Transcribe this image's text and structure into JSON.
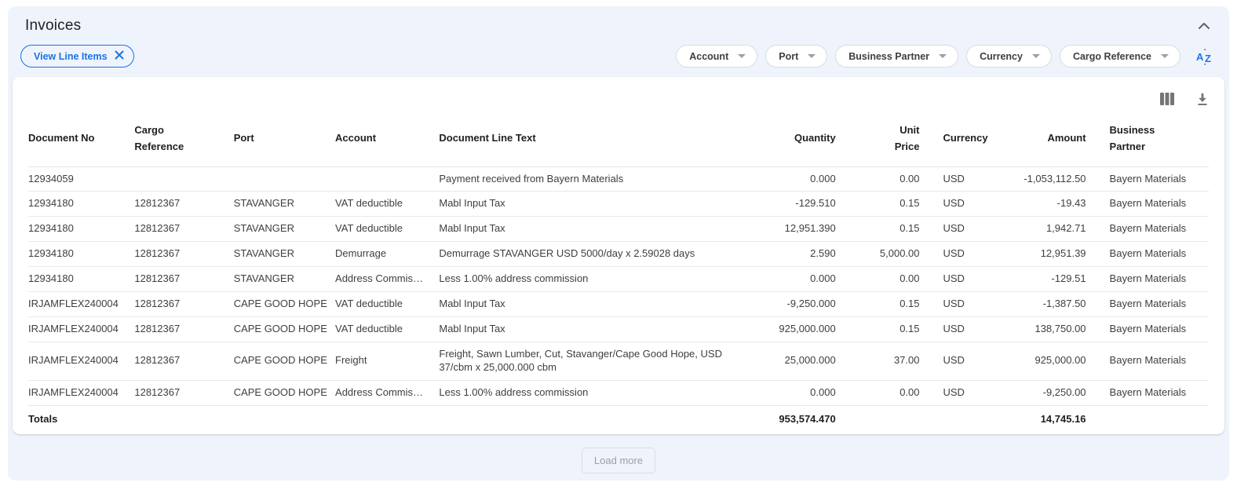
{
  "header": {
    "title": "Invoices"
  },
  "toolbar": {
    "active_filter_chip": {
      "label": "View Line Items"
    },
    "filter_dropdowns": [
      {
        "label": "Account"
      },
      {
        "label": "Port"
      },
      {
        "label": "Business Partner"
      },
      {
        "label": "Currency"
      },
      {
        "label": "Cargo Reference"
      }
    ]
  },
  "table": {
    "columns": [
      {
        "label": "Document No",
        "align": "left"
      },
      {
        "label": "Cargo Reference",
        "align": "left"
      },
      {
        "label": "Port",
        "align": "left"
      },
      {
        "label": "Account",
        "align": "left"
      },
      {
        "label": "Document Line Text",
        "align": "left"
      },
      {
        "label": "Quantity",
        "align": "right"
      },
      {
        "label": "Unit Price",
        "align": "right"
      },
      {
        "label": "Currency",
        "align": "left"
      },
      {
        "label": "Amount",
        "align": "right"
      },
      {
        "label": "Business Partner",
        "align": "left"
      }
    ],
    "rows": [
      [
        "12934059",
        "",
        "",
        "",
        "Payment received from Bayern Materials",
        "0.000",
        "0.00",
        "USD",
        "-1,053,112.50",
        "Bayern Materials"
      ],
      [
        "12934180",
        "12812367",
        "STAVANGER",
        "VAT deductible",
        "Mabl Input Tax",
        "-129.510",
        "0.15",
        "USD",
        "-19.43",
        "Bayern Materials"
      ],
      [
        "12934180",
        "12812367",
        "STAVANGER",
        "VAT deductible",
        "Mabl Input Tax",
        "12,951.390",
        "0.15",
        "USD",
        "1,942.71",
        "Bayern Materials"
      ],
      [
        "12934180",
        "12812367",
        "STAVANGER",
        "Demurrage",
        "Demurrage STAVANGER USD 5000/day x 2.59028 days",
        "2.590",
        "5,000.00",
        "USD",
        "12,951.39",
        "Bayern Materials"
      ],
      [
        "12934180",
        "12812367",
        "STAVANGER",
        "Address Commis…",
        "Less 1.00% address commission",
        "0.000",
        "0.00",
        "USD",
        "-129.51",
        "Bayern Materials"
      ],
      [
        "IRJAMFLEX240004",
        "12812367",
        "CAPE GOOD HOPE",
        "VAT deductible",
        "Mabl Input Tax",
        "-9,250.000",
        "0.15",
        "USD",
        "-1,387.50",
        "Bayern Materials"
      ],
      [
        "IRJAMFLEX240004",
        "12812367",
        "CAPE GOOD HOPE",
        "VAT deductible",
        "Mabl Input Tax",
        "925,000.000",
        "0.15",
        "USD",
        "138,750.00",
        "Bayern Materials"
      ],
      [
        "IRJAMFLEX240004",
        "12812367",
        "CAPE GOOD HOPE",
        "Freight",
        "Freight, Sawn Lumber, Cut, Stavanger/Cape Good Hope, USD 37/cbm x 25,000.000 cbm",
        "25,000.000",
        "37.00",
        "USD",
        "925,000.00",
        "Bayern Materials"
      ],
      [
        "IRJAMFLEX240004",
        "12812367",
        "CAPE GOOD HOPE",
        "Address Commis…",
        "Less 1.00% address commission",
        "0.000",
        "0.00",
        "USD",
        "-9,250.00",
        "Bayern Materials"
      ]
    ],
    "totals": {
      "label": "Totals",
      "quantity": "953,574.470",
      "amount": "14,745.16"
    }
  },
  "footer": {
    "load_more_label": "Load more"
  },
  "colors": {
    "accent_blue": "#1A73E8",
    "panel_bg": "#EFF3FB",
    "icon_gray": "#5F6368",
    "row_border": "#E7E9ED"
  }
}
